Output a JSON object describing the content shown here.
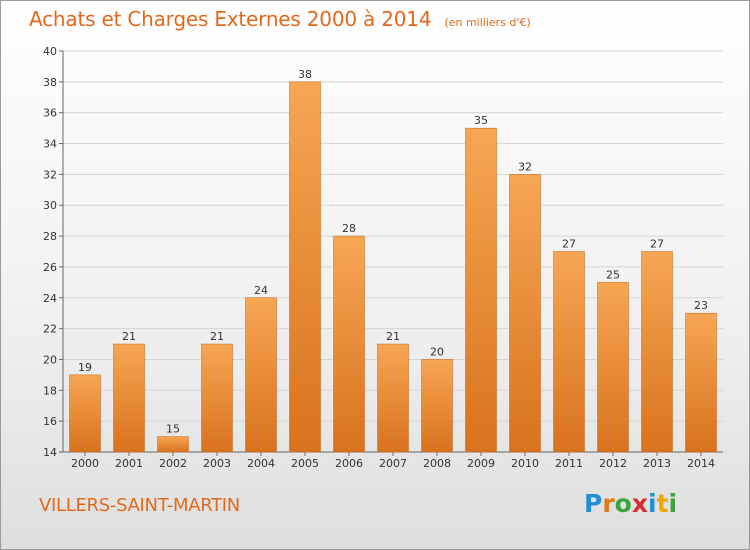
{
  "title": "Achats et Charges Externes 2000 à 2014",
  "unit": "(en milliers d'€)",
  "place": "VILLERS-SAINT-MARTIN",
  "brand": {
    "letters": [
      "P",
      "r",
      "o",
      "x",
      "i",
      "t",
      "i"
    ],
    "colors": [
      "#1f8fd8",
      "#e07a12",
      "#3aa53a",
      "#d62e2e",
      "#1f8fd8",
      "#f0a800",
      "#3aa53a"
    ]
  },
  "colors": {
    "accent": "#e06a1c",
    "bar_light": "#f7a654",
    "bar_dark": "#d8721e"
  },
  "chart_data": {
    "type": "bar",
    "categories": [
      "2000",
      "2001",
      "2002",
      "2003",
      "2004",
      "2005",
      "2006",
      "2007",
      "2008",
      "2009",
      "2010",
      "2011",
      "2012",
      "2013",
      "2014"
    ],
    "values": [
      19,
      21,
      15,
      21,
      24,
      38,
      28,
      21,
      20,
      35,
      32,
      27,
      25,
      27,
      23
    ],
    "title": "Achats et Charges Externes 2000 à 2014",
    "ylim": [
      14,
      40
    ],
    "yticks": [
      14,
      16,
      18,
      20,
      22,
      24,
      26,
      28,
      30,
      32,
      34,
      36,
      38,
      40
    ],
    "grid": true,
    "legend": "none"
  }
}
